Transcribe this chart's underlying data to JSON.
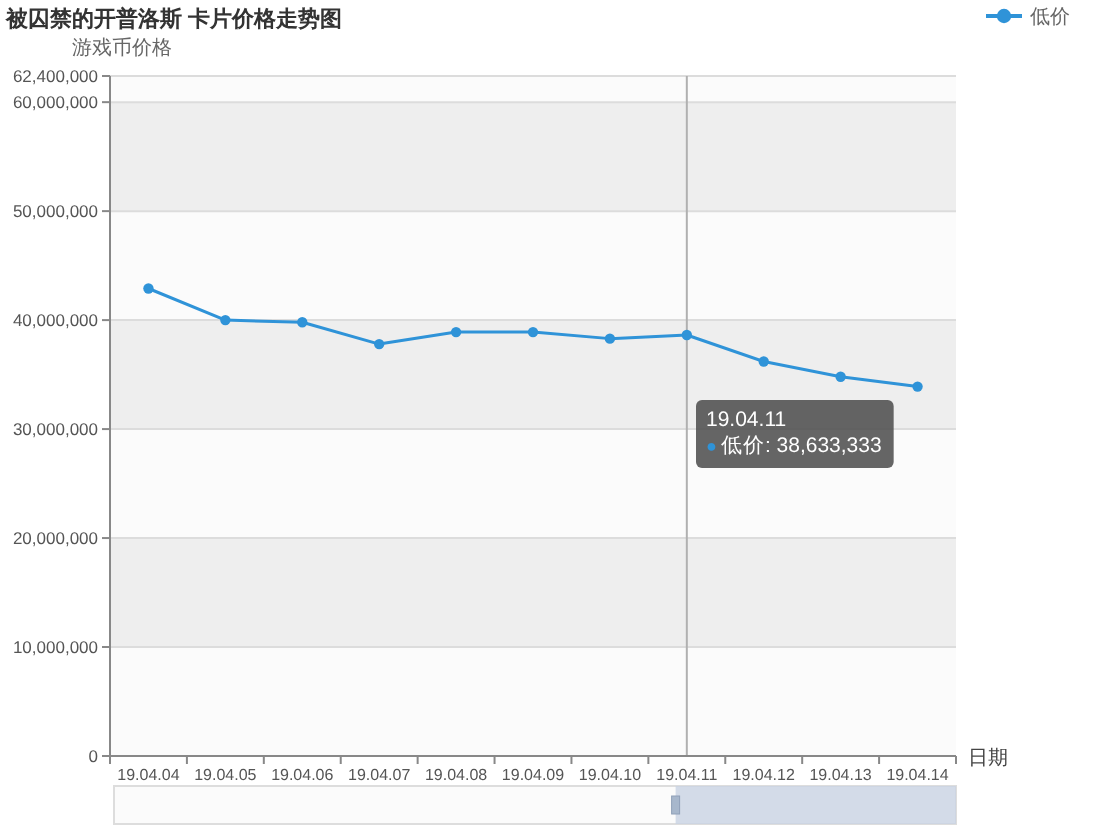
{
  "chart_data": {
    "type": "line",
    "title": "被囚禁的开普洛斯 卡片价格走势图",
    "ylabel": "游戏币价格",
    "xlabel": "日期",
    "categories": [
      "19.04.04",
      "19.04.05",
      "19.04.06",
      "19.04.07",
      "19.04.08",
      "19.04.09",
      "19.04.10",
      "19.04.11",
      "19.04.12",
      "19.04.13",
      "19.04.14"
    ],
    "series": [
      {
        "name": "低价",
        "color": "#2f93d8",
        "values": [
          42900000,
          40000000,
          39800000,
          37800000,
          38900000,
          38900000,
          38300000,
          38633333,
          36200000,
          34800000,
          33900000
        ]
      }
    ],
    "ylim": [
      0,
      62400000
    ],
    "yticks": [
      0,
      {
        "value": 10000000,
        "label": "10,000,000"
      },
      {
        "value": 20000000,
        "label": "20,000,000"
      },
      {
        "value": 30000000,
        "label": "30,000,000"
      },
      {
        "value": 40000000,
        "label": "40,000,000"
      },
      {
        "value": 50000000,
        "label": "50,000,000"
      },
      {
        "value": 60000000,
        "label": "60,000,000"
      },
      {
        "value": 62400000,
        "label": "62,400,000"
      }
    ],
    "grid": "y",
    "legend": "top right",
    "marker": "circle",
    "line_style": "solid",
    "ref_lines": [
      {
        "axis": "x",
        "value": "19.04.11",
        "color": "#b0b0b0"
      }
    ],
    "annotations": [
      "19.04.11\n●低价: 38,633,333"
    ]
  }
}
